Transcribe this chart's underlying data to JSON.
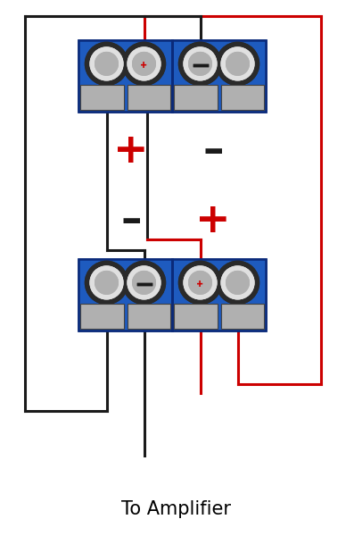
{
  "bg_color": "#ffffff",
  "title": "To Amplifier",
  "title_fontsize": 15,
  "wire_black": "#1a1a1a",
  "wire_red": "#cc0000",
  "blue_body": "#1e5bbf",
  "blue_dark": "#0a2a7a",
  "blue_mid": "#2266cc",
  "terminal_gray": "#b0b0b0",
  "terminal_dark": "#444444",
  "terminal_outer": "#2a2a2a",
  "sign_red": "#cc0000",
  "sign_black": "#1a1a1a",
  "lw_wire": 2.2,
  "lw_border": 1.8
}
